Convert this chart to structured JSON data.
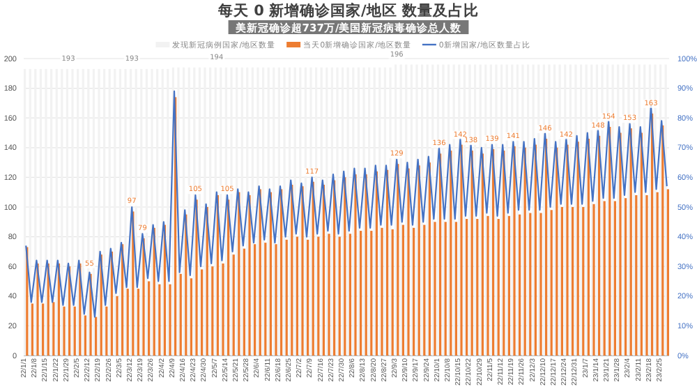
{
  "chart_data": {
    "type": "bar",
    "title": "每天 0 新增确诊国家/地区 数量及占比",
    "annotations": [
      "美新冠确诊超737万/美国新冠病毒确诊总人数"
    ],
    "categories": [
      "22/1/1",
      null,
      "22/1/8",
      null,
      "22/1/15",
      null,
      "22/1/22",
      null,
      "22/1/29",
      null,
      "22/2/5",
      null,
      "22/2/12",
      null,
      "22/2/19",
      null,
      "22/2/26",
      null,
      "22/3/5",
      null,
      "22/3/12",
      null,
      "22/3/19",
      null,
      "22/3/26",
      null,
      "22/4/2",
      null,
      "22/4/9",
      null,
      "22/4/16",
      null,
      "22/4/23",
      null,
      "22/4/30",
      null,
      "22/5/7",
      null,
      "22/5/14",
      null,
      "22/5/21",
      null,
      "22/5/28",
      null,
      "22/6/4",
      null,
      "22/6/11",
      null,
      "22/6/18",
      null,
      "22/6/25",
      null,
      "22/7/2",
      null,
      "22/7/9",
      null,
      "22/7/16",
      null,
      "22/7/23",
      null,
      "22/7/30",
      null,
      "22/8/6",
      null,
      "22/8/13",
      null,
      "22/8/20",
      null,
      "22/8/27",
      null,
      "22/9/3",
      null,
      "22/9/10",
      null,
      "22/9/17",
      null,
      "22/9/24",
      null,
      "22/10/1",
      null,
      "22/10/8",
      null,
      "22/10/15",
      null,
      "22/10/22",
      null,
      "22/10/29",
      null,
      "22/11/5",
      null,
      "22/11/12",
      null,
      "22/11/19",
      null,
      "22/11/26",
      null,
      "22/12/3",
      null,
      "22/12/10",
      null,
      "22/12/17",
      null,
      "22/12/24",
      null,
      "22/12/31",
      null,
      "23/1/7",
      null,
      "23/1/14",
      null,
      "23/1/21",
      null,
      "23/1/28",
      null,
      "23/2/4",
      null,
      "23/2/11",
      null,
      "23/2/18",
      null,
      "23/2/25",
      null
    ],
    "series": [
      {
        "name": "发现新冠病例国家/地区数量",
        "color": "#f2f2f2",
        "values": [
          193,
          193,
          193,
          193,
          193,
          193,
          193,
          193,
          193,
          193,
          193,
          193,
          193,
          193,
          193,
          193,
          193,
          193,
          193,
          193,
          193,
          193,
          193,
          193,
          193,
          193,
          193,
          193,
          194,
          194,
          194,
          194,
          194,
          194,
          194,
          194,
          194,
          194,
          194,
          194,
          194,
          194,
          194,
          194,
          194,
          194,
          194,
          194,
          194,
          194,
          194,
          194,
          194,
          194,
          194,
          194,
          194,
          194,
          194,
          194,
          194,
          194,
          194,
          194,
          194,
          194,
          194,
          194,
          194,
          194,
          196,
          196,
          196,
          196,
          196,
          196,
          196,
          196,
          196,
          196,
          196,
          196,
          196,
          196,
          196,
          196,
          196,
          196,
          196,
          196,
          196,
          196,
          196,
          196,
          196,
          196,
          196,
          196,
          196,
          196,
          196,
          196,
          196,
          196,
          196,
          196,
          196,
          196,
          196,
          196,
          196,
          196,
          196,
          196,
          196,
          196,
          196,
          196,
          196,
          196,
          196,
          196
        ],
        "value_labels": [
          null,
          null,
          null,
          null,
          null,
          null,
          null,
          null,
          "193",
          null,
          null,
          null,
          null,
          null,
          null,
          null,
          null,
          null,
          null,
          null,
          "193",
          null,
          null,
          null,
          null,
          null,
          null,
          null,
          null,
          null,
          null,
          null,
          null,
          null,
          null,
          null,
          "194",
          null,
          null,
          null,
          null,
          null,
          null,
          null,
          null,
          null,
          null,
          null,
          null,
          null,
          null,
          null,
          null,
          null,
          null,
          null,
          null,
          null,
          null,
          null,
          null,
          null,
          null,
          null,
          null,
          null,
          null,
          null,
          null,
          null,
          "196",
          null,
          null,
          null,
          null,
          null,
          null,
          null,
          null,
          null,
          null,
          null,
          null,
          null,
          null,
          null,
          null,
          null,
          null,
          null,
          null,
          null,
          null,
          null,
          null,
          null,
          null,
          null,
          null,
          null,
          null,
          null,
          null,
          null,
          null,
          null,
          null,
          null,
          null,
          null,
          null,
          null,
          null,
          null,
          null,
          null,
          null,
          null,
          null,
          null,
          null,
          null
        ]
      },
      {
        "name": "当天0新增确诊国家/地区数量",
        "color": "#ed7d31",
        "values": [
          73,
          35,
          62,
          35,
          62,
          36,
          62,
          33,
          60,
          33,
          62,
          27,
          55,
          26,
          68,
          33,
          70,
          40,
          75,
          45,
          97,
          45,
          79,
          50,
          86,
          48,
          88,
          48,
          174,
          55,
          95,
          52,
          105,
          58,
          100,
          60,
          108,
          62,
          105,
          68,
          110,
          72,
          108,
          75,
          112,
          76,
          110,
          75,
          112,
          78,
          115,
          80,
          114,
          78,
          117,
          80,
          115,
          82,
          118,
          80,
          120,
          82,
          122,
          84,
          122,
          84,
          124,
          86,
          125,
          85,
          129,
          88,
          126,
          86,
          128,
          88,
          130,
          90,
          136,
          90,
          138,
          90,
          142,
          92,
          138,
          92,
          136,
          94,
          139,
          92,
          138,
          94,
          141,
          95,
          140,
          96,
          142,
          96,
          146,
          98,
          140,
          100,
          142,
          100,
          144,
          100,
          146,
          102,
          148,
          104,
          154,
          104,
          150,
          106,
          153,
          108,
          150,
          108,
          163,
          110,
          155,
          112
        ],
        "value_labels": [
          null,
          null,
          null,
          null,
          null,
          null,
          null,
          null,
          null,
          null,
          null,
          null,
          "55",
          null,
          null,
          null,
          null,
          null,
          null,
          null,
          "97",
          null,
          "79",
          null,
          null,
          null,
          null,
          null,
          null,
          null,
          null,
          null,
          "105",
          null,
          null,
          null,
          null,
          null,
          "105",
          null,
          null,
          null,
          null,
          null,
          null,
          null,
          null,
          null,
          null,
          null,
          null,
          null,
          null,
          null,
          "117",
          null,
          null,
          null,
          null,
          null,
          null,
          null,
          null,
          null,
          null,
          null,
          null,
          null,
          null,
          null,
          "129",
          null,
          null,
          null,
          null,
          null,
          null,
          null,
          "136",
          null,
          null,
          null,
          "142",
          null,
          "138",
          null,
          null,
          null,
          "139",
          null,
          null,
          null,
          "141",
          null,
          null,
          null,
          null,
          null,
          "146",
          null,
          null,
          null,
          "142",
          null,
          null,
          null,
          null,
          null,
          "148",
          null,
          "154",
          null,
          null,
          null,
          "153",
          null,
          null,
          null,
          "163",
          null,
          null,
          null
        ]
      },
      {
        "name": "0新增国家/地区数量占比",
        "type": "line",
        "axis": "y2",
        "color": "#4472c4",
        "values": [
          37,
          18,
          32,
          18,
          32,
          18,
          32,
          17,
          31,
          17,
          32,
          14,
          28,
          13,
          35,
          17,
          36,
          21,
          38,
          23,
          50,
          23,
          41,
          26,
          44,
          25,
          45,
          25,
          89,
          28,
          49,
          27,
          54,
          30,
          51,
          31,
          55,
          32,
          54,
          35,
          56,
          37,
          55,
          38,
          57,
          39,
          56,
          38,
          57,
          40,
          59,
          41,
          58,
          40,
          60,
          41,
          59,
          42,
          61,
          41,
          62,
          42,
          63,
          43,
          63,
          43,
          64,
          44,
          64,
          44,
          66,
          45,
          65,
          44,
          66,
          45,
          67,
          46,
          70,
          46,
          71,
          46,
          73,
          47,
          71,
          47,
          70,
          48,
          71,
          47,
          71,
          48,
          72,
          49,
          72,
          49,
          73,
          49,
          75,
          50,
          72,
          51,
          73,
          51,
          74,
          51,
          75,
          52,
          76,
          53,
          79,
          53,
          77,
          54,
          78,
          55,
          77,
          55,
          84,
          56,
          79,
          57
        ]
      }
    ],
    "ylim": [
      0,
      200
    ],
    "yticks": [
      0,
      20,
      40,
      60,
      80,
      100,
      120,
      140,
      160,
      180,
      200
    ],
    "y2lim": [
      0,
      100
    ],
    "y2ticks": [
      {
        "value": 0,
        "label": "0%"
      },
      {
        "value": 10,
        "label": "10%"
      },
      {
        "value": 20,
        "label": "20%"
      },
      {
        "value": 30,
        "label": "30%"
      },
      {
        "value": 40,
        "label": "40%"
      },
      {
        "value": 50,
        "label": "50%"
      },
      {
        "value": 60,
        "label": "60%"
      },
      {
        "value": 70,
        "label": "70%"
      },
      {
        "value": 80,
        "label": "80%"
      },
      {
        "value": 90,
        "label": "90%"
      },
      {
        "value": 100,
        "label": "100%"
      }
    ],
    "grid": "y",
    "legend": "top",
    "marker": "none",
    "line_style": "solid"
  }
}
